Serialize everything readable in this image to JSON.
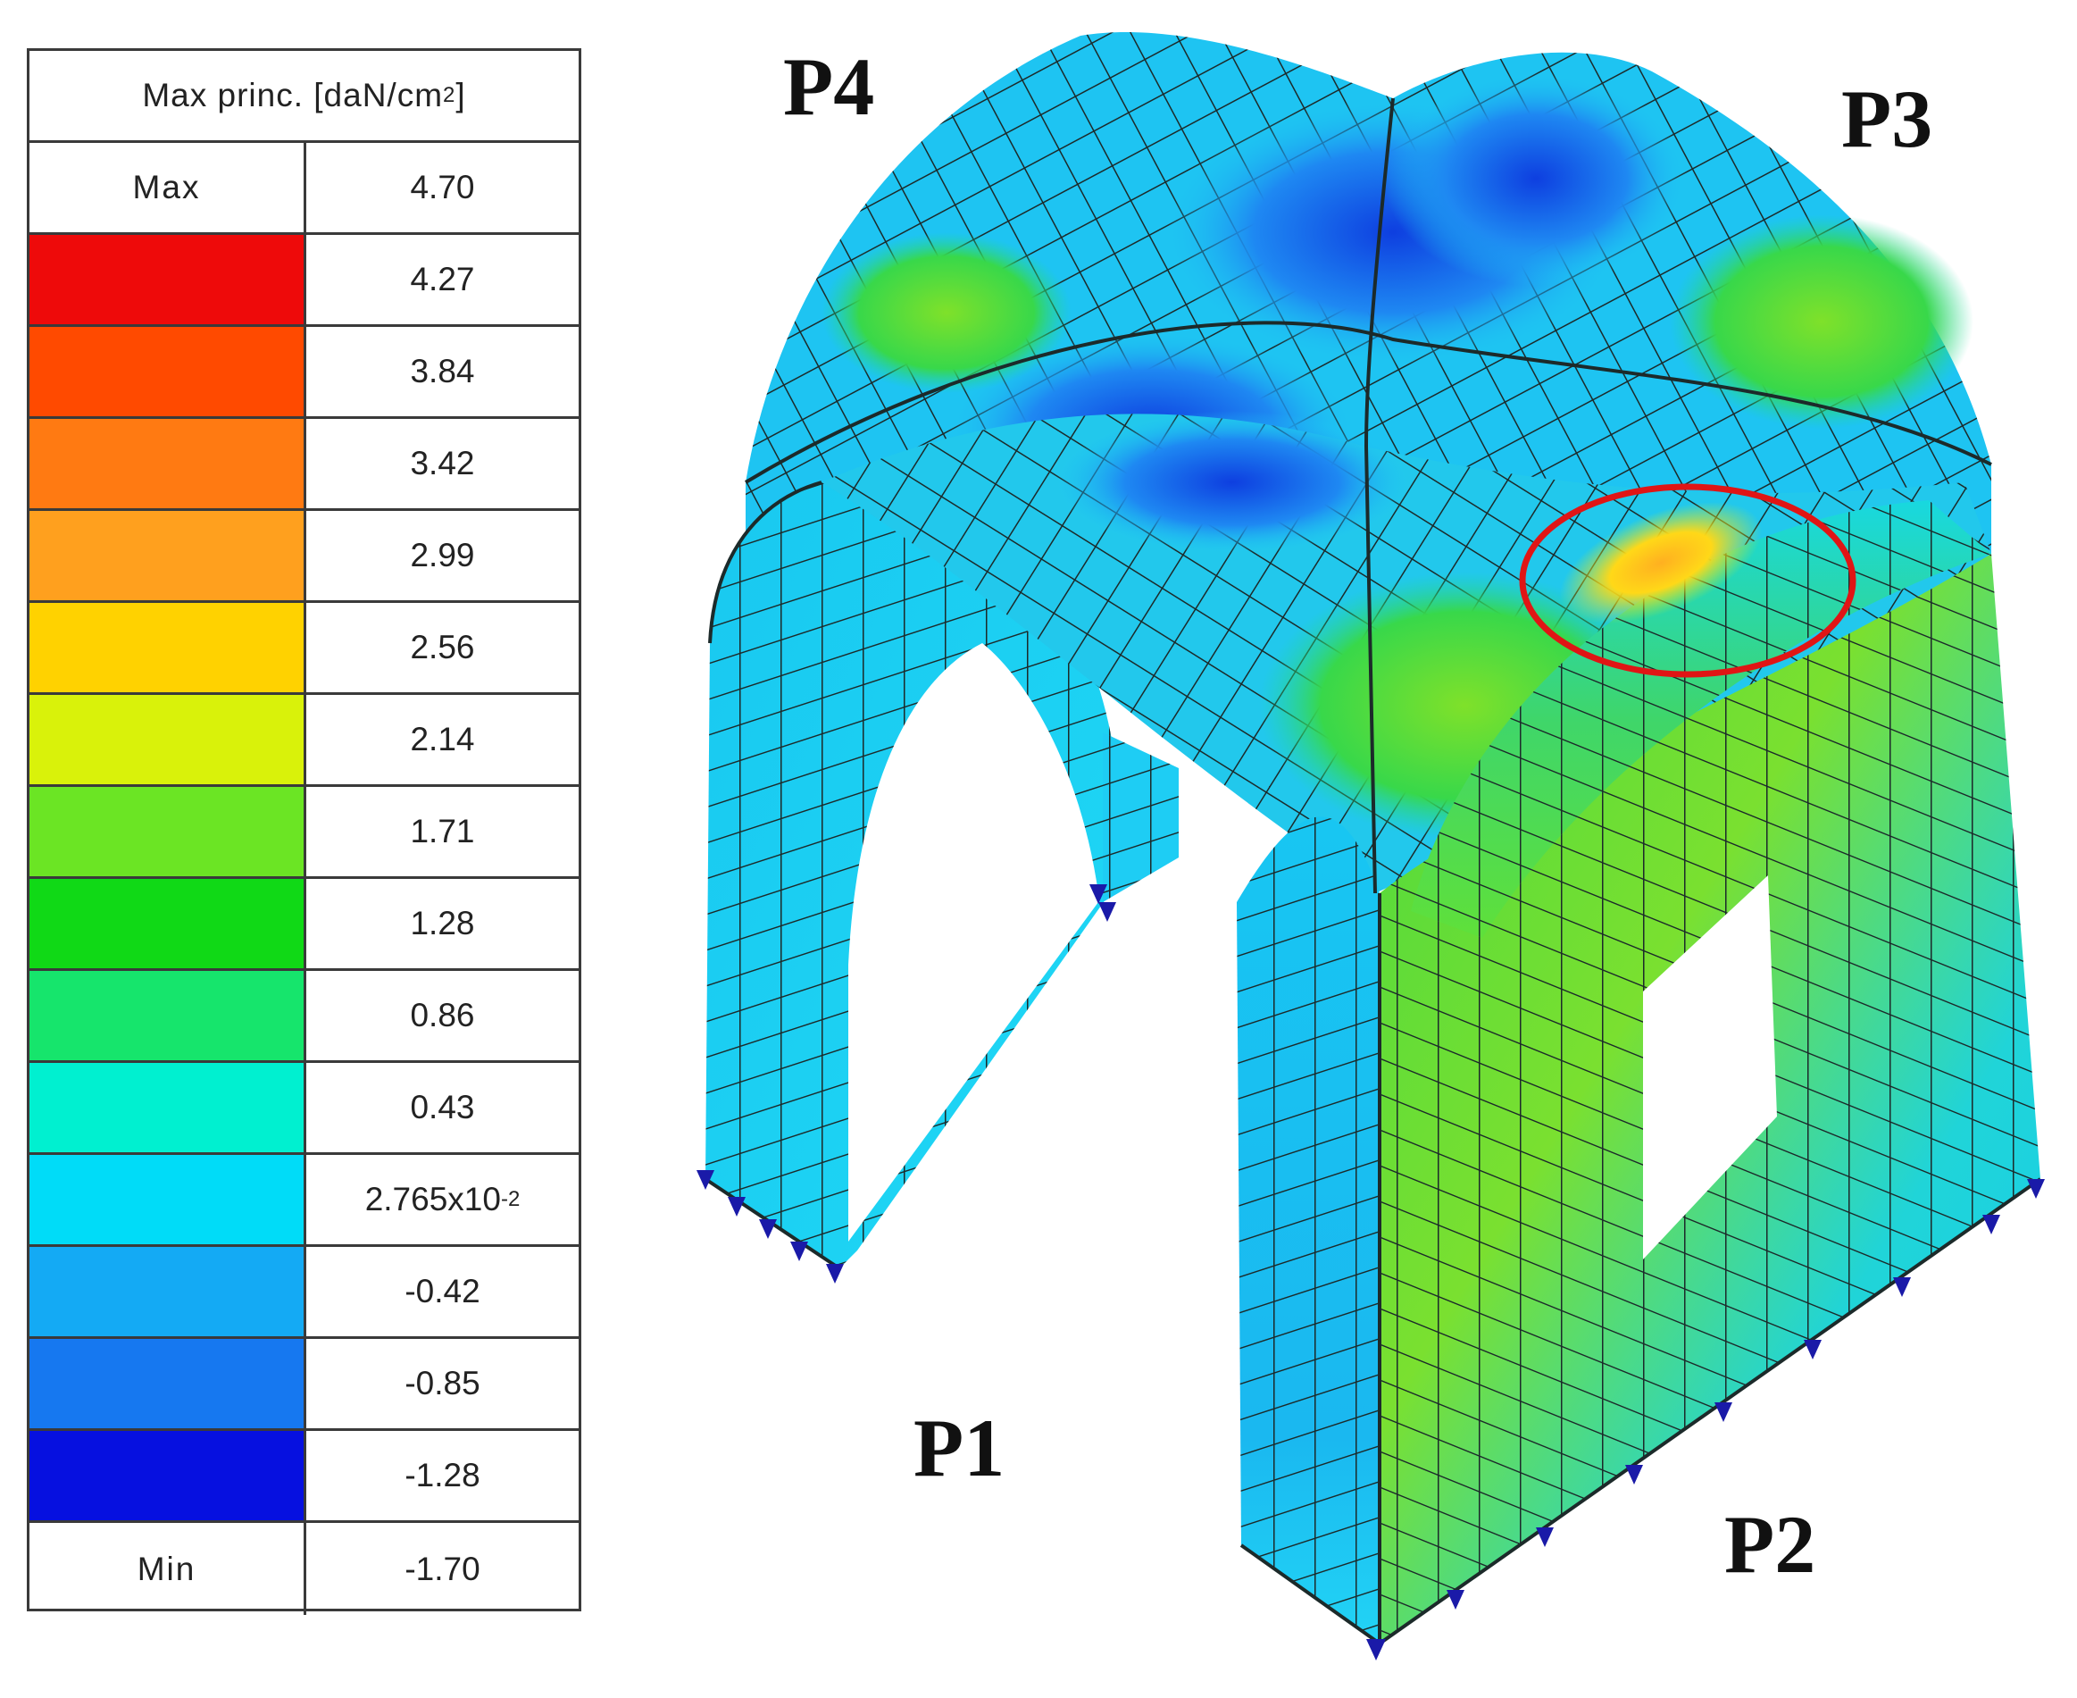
{
  "legend": {
    "title": "Max princ. [daN/cm",
    "title_sup": "2",
    "title_close": "]",
    "max_label": "Max",
    "max_value": "4.70",
    "min_label": "Min",
    "min_value": "-1.70",
    "bands": [
      {
        "value": "4.27",
        "color": "#ee0a0a"
      },
      {
        "value": "3.84",
        "color": "#ff4a00"
      },
      {
        "value": "3.42",
        "color": "#ff7a12"
      },
      {
        "value": "2.99",
        "color": "#ffa01e"
      },
      {
        "value": "2.56",
        "color": "#ffd200"
      },
      {
        "value": "2.14",
        "color": "#d9f20a"
      },
      {
        "value": "1.71",
        "color": "#6be524"
      },
      {
        "value": "1.28",
        "color": "#10d916"
      },
      {
        "value": "0.86",
        "color": "#16e56c"
      },
      {
        "value": "0.43",
        "color": "#00f0d0"
      },
      {
        "value": "2.765x10",
        "sup": "-2",
        "color": "#00dcf8"
      },
      {
        "value": "-0.42",
        "color": "#14aaf4"
      },
      {
        "value": "-0.85",
        "color": "#1678f0"
      },
      {
        "value": "-1.28",
        "color": "#0610e0"
      }
    ]
  },
  "pillars": {
    "p1": "P1",
    "p2": "P2",
    "p3": "P3",
    "p4": "P4"
  },
  "colors": {
    "mesh_line": "#1c2a2a",
    "highlight_ring": "#e01515",
    "support": "#1a1aa8"
  }
}
